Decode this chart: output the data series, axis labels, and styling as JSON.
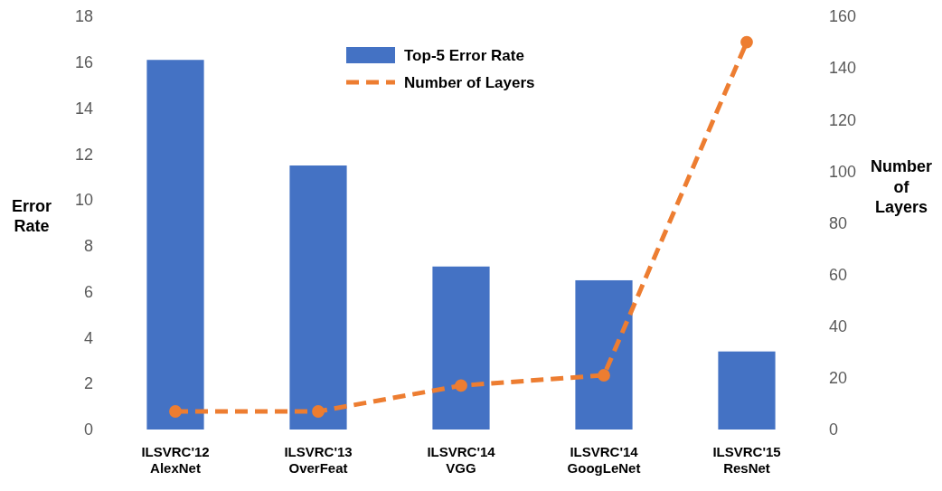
{
  "chart_data": {
    "type": "bar",
    "ylabel": "Error\nRate",
    "y2label": "Number\nof\nLayers",
    "categories": [
      "ILSVRC'12\nAlexNet",
      "ILSVRC'13\nOverFeat",
      "ILSVRC'14\nVGG",
      "ILSVRC'14\nGoogLeNet",
      "ILSVRC'15\nResNet"
    ],
    "series": [
      {
        "name": "Top-5 Error Rate",
        "color": "#4472c4",
        "values": [
          16.1,
          11.5,
          7.1,
          6.5,
          3.4
        ]
      },
      {
        "name": "Number of Layers",
        "type": "line",
        "axis": "y2",
        "color": "#ed7d31",
        "values": [
          7,
          7,
          17,
          21,
          150
        ],
        "marker": "circle",
        "line_style": "dashed"
      }
    ],
    "ylim": [
      0,
      18
    ],
    "yticks": [
      0,
      2,
      4,
      6,
      8,
      10,
      12,
      14,
      16,
      18
    ],
    "y2lim": [
      0,
      160
    ],
    "y2ticks": [
      0,
      20,
      40,
      60,
      80,
      100,
      120,
      140,
      160
    ],
    "grid": false,
    "legend": "top"
  }
}
